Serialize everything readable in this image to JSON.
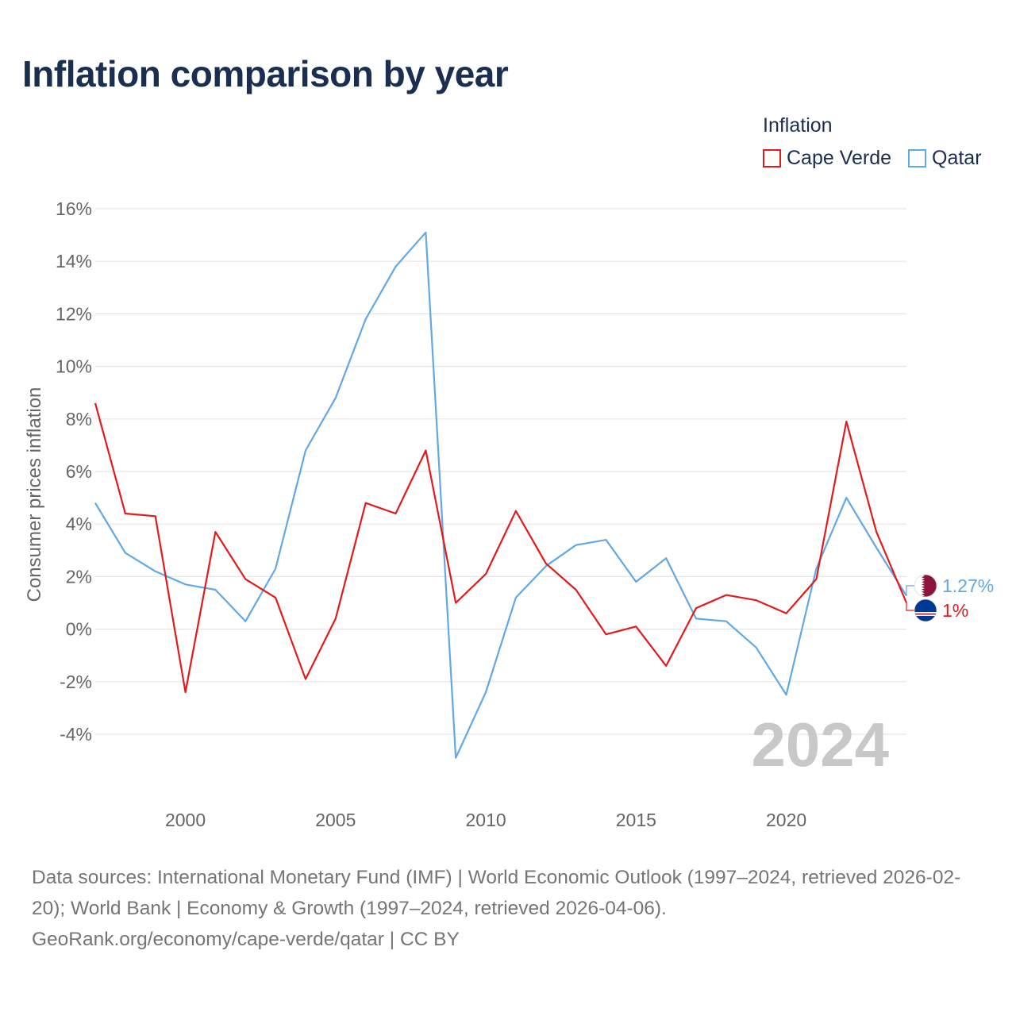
{
  "title": "Inflation comparison by year",
  "legend": {
    "title": "Inflation",
    "items": [
      {
        "label": "Cape Verde",
        "color": "#e31a1c"
      },
      {
        "label": "Qatar",
        "color": "#62a8e5"
      }
    ]
  },
  "year_watermark": "2024",
  "footer": {
    "line1": "Data sources: International Monetary Fund (IMF) | World Economic Outlook (1997–2024, retrieved 2026-02-20); World Bank | Economy & Growth (1997–2024, retrieved 2026-04-06).",
    "line2": "GeoRank.org/economy/cape-verde/qatar | CC BY"
  },
  "chart_data": {
    "type": "line",
    "title": "Inflation comparison by year",
    "xlabel": "",
    "ylabel": "Consumer prices inflation",
    "xlim": [
      1997,
      2024
    ],
    "ylim": [
      -6,
      16
    ],
    "y_ticks": [
      -4,
      -2,
      0,
      2,
      4,
      6,
      8,
      10,
      12,
      14,
      16
    ],
    "y_tick_labels": [
      "-4%",
      "-2%",
      "0%",
      "2%",
      "4%",
      "6%",
      "8%",
      "10%",
      "12%",
      "14%",
      "16%"
    ],
    "x_ticks": [
      2000,
      2005,
      2010,
      2015,
      2020
    ],
    "x_tick_labels": [
      "2000",
      "2005",
      "2010",
      "2015",
      "2020"
    ],
    "grid": true,
    "legend_position": "top-right",
    "x": [
      1997,
      1998,
      1999,
      2000,
      2001,
      2002,
      2003,
      2004,
      2005,
      2006,
      2007,
      2008,
      2009,
      2010,
      2011,
      2012,
      2013,
      2014,
      2015,
      2016,
      2017,
      2018,
      2019,
      2020,
      2021,
      2022,
      2023,
      2024
    ],
    "series": [
      {
        "name": "Cape Verde",
        "color": "#e31a1c",
        "end_label": "1%",
        "flag": "cape-verde-flag",
        "values": [
          8.6,
          4.4,
          4.3,
          -2.4,
          3.7,
          1.9,
          1.2,
          -1.9,
          0.4,
          4.8,
          4.4,
          6.8,
          1.0,
          2.1,
          4.5,
          2.5,
          1.5,
          -0.2,
          0.1,
          -1.4,
          0.8,
          1.3,
          1.1,
          0.6,
          1.9,
          7.9,
          3.7,
          1.0
        ]
      },
      {
        "name": "Qatar",
        "color": "#62a8e5",
        "end_label": "1.27%",
        "flag": "qatar-flag",
        "values": [
          4.8,
          2.9,
          2.2,
          1.7,
          1.5,
          0.3,
          2.3,
          6.8,
          8.8,
          11.8,
          13.8,
          15.1,
          -4.9,
          -2.4,
          1.2,
          2.4,
          3.2,
          3.4,
          1.8,
          2.7,
          0.4,
          0.3,
          -0.7,
          -2.5,
          2.3,
          5.0,
          3.1,
          1.27
        ]
      }
    ]
  }
}
